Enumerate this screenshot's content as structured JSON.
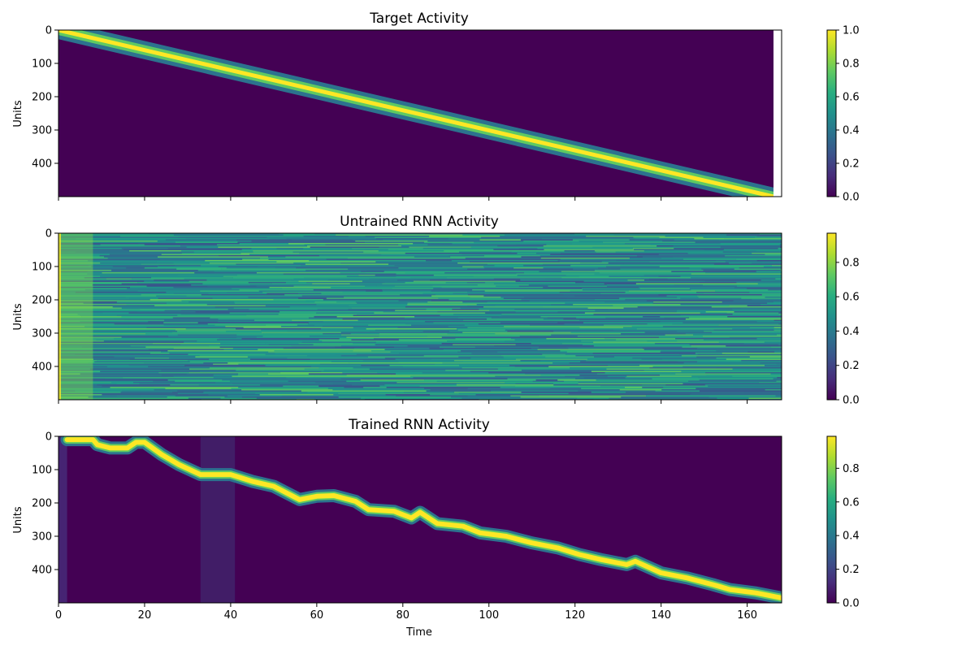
{
  "chart_data": [
    {
      "type": "heatmap",
      "title": "Target Activity",
      "ylabel": "Units",
      "xlabel": "",
      "xlim": [
        0,
        168
      ],
      "ylim": [
        500,
        0
      ],
      "x_ticks": [
        0,
        20,
        40,
        60,
        80,
        100,
        120,
        140,
        160
      ],
      "y_ticks": [
        0,
        100,
        200,
        300,
        400
      ],
      "x_ticklabels_visible": false,
      "data_time_extent": [
        0,
        166
      ],
      "pattern": "diagonal band of peak activity from unit 0 at time 0 to unit 500 at time 166",
      "band_points": [
        {
          "time": 0,
          "unit": 0
        },
        {
          "time": 166,
          "unit": 500
        }
      ],
      "colorbar": {
        "min": 0.0,
        "max": 1.0,
        "ticks": [
          0.0,
          0.2,
          0.4,
          0.6,
          0.8,
          1.0
        ]
      },
      "colormap": "viridis"
    },
    {
      "type": "heatmap",
      "title": "Untrained RNN Activity",
      "ylabel": "Units",
      "xlabel": "",
      "xlim": [
        0,
        168
      ],
      "ylim": [
        500,
        0
      ],
      "x_ticks": [
        0,
        20,
        40,
        60,
        80,
        100,
        120,
        140,
        160
      ],
      "y_ticks": [
        0,
        100,
        200,
        300,
        400
      ],
      "x_ticklabels_visible": false,
      "pattern": "noisy horizontal streaks, mostly values 0.4-0.7, brighter near time 0",
      "colorbar": {
        "min": 0.0,
        "max": 0.97,
        "ticks": [
          0.0,
          0.2,
          0.4,
          0.6,
          0.8
        ]
      },
      "colormap": "viridis"
    },
    {
      "type": "heatmap",
      "title": "Trained RNN Activity",
      "ylabel": "Units",
      "xlabel": "Time",
      "xlim": [
        0,
        168
      ],
      "ylim": [
        500,
        0
      ],
      "x_ticks": [
        0,
        20,
        40,
        60,
        80,
        100,
        120,
        140,
        160
      ],
      "y_ticks": [
        0,
        100,
        200,
        300,
        400
      ],
      "x_ticklabels_visible": true,
      "pattern": "stepped diagonal band of peak activity following the target trajectory",
      "band_points": [
        {
          "time": 2,
          "unit": 10
        },
        {
          "time": 8,
          "unit": 10
        },
        {
          "time": 9,
          "unit": 25
        },
        {
          "time": 12,
          "unit": 35
        },
        {
          "time": 16,
          "unit": 35
        },
        {
          "time": 18,
          "unit": 18
        },
        {
          "time": 20,
          "unit": 18
        },
        {
          "time": 24,
          "unit": 55
        },
        {
          "time": 28,
          "unit": 85
        },
        {
          "time": 33,
          "unit": 115
        },
        {
          "time": 40,
          "unit": 115
        },
        {
          "time": 45,
          "unit": 135
        },
        {
          "time": 50,
          "unit": 150
        },
        {
          "time": 56,
          "unit": 190
        },
        {
          "time": 60,
          "unit": 180
        },
        {
          "time": 64,
          "unit": 178
        },
        {
          "time": 69,
          "unit": 195
        },
        {
          "time": 72,
          "unit": 220
        },
        {
          "time": 78,
          "unit": 225
        },
        {
          "time": 82,
          "unit": 245
        },
        {
          "time": 84,
          "unit": 228
        },
        {
          "time": 88,
          "unit": 262
        },
        {
          "time": 94,
          "unit": 270
        },
        {
          "time": 98,
          "unit": 290
        },
        {
          "time": 104,
          "unit": 300
        },
        {
          "time": 110,
          "unit": 320
        },
        {
          "time": 116,
          "unit": 335
        },
        {
          "time": 121,
          "unit": 355
        },
        {
          "time": 126,
          "unit": 370
        },
        {
          "time": 132,
          "unit": 385
        },
        {
          "time": 134,
          "unit": 375
        },
        {
          "time": 140,
          "unit": 410
        },
        {
          "time": 146,
          "unit": 425
        },
        {
          "time": 152,
          "unit": 445
        },
        {
          "time": 156,
          "unit": 460
        },
        {
          "time": 162,
          "unit": 470
        },
        {
          "time": 168,
          "unit": 485
        }
      ],
      "faint_column_region": [
        33,
        41
      ],
      "colorbar": {
        "min": 0.0,
        "max": 0.99,
        "ticks": [
          0.0,
          0.2,
          0.4,
          0.6,
          0.8
        ]
      },
      "colormap": "viridis"
    }
  ]
}
